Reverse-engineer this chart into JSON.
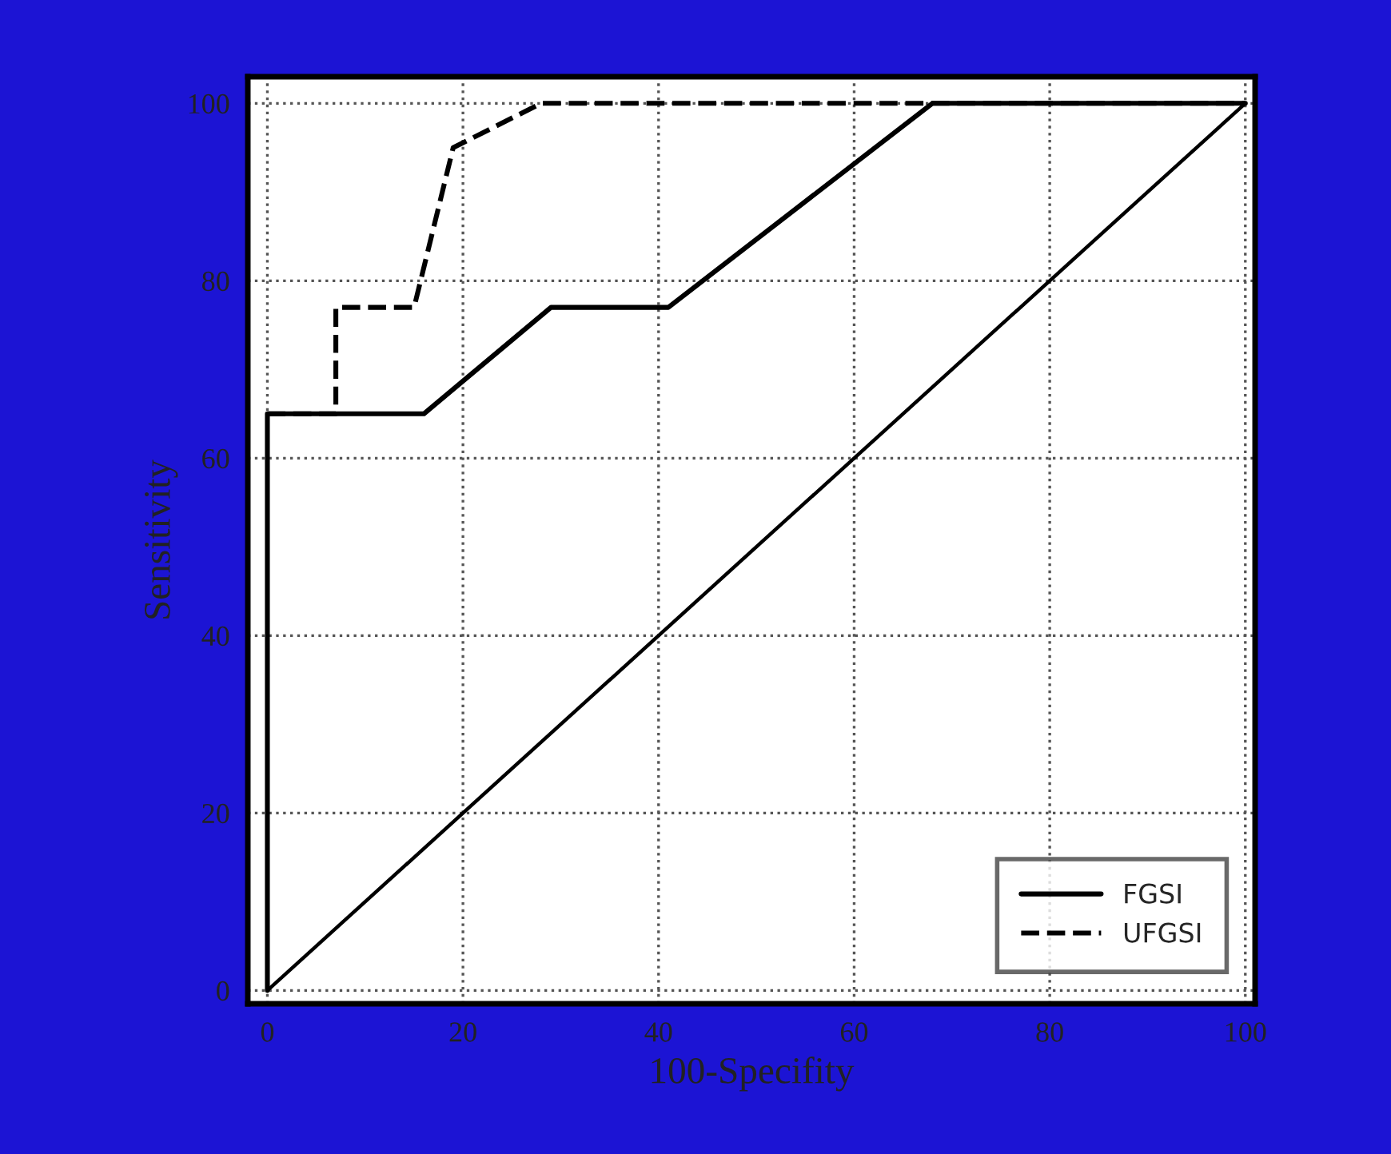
{
  "chart_data": {
    "type": "line",
    "xlabel": "100-Specifity",
    "ylabel": "Sensitivity",
    "xlim": [
      -2,
      101
    ],
    "ylim": [
      -1.5,
      103
    ],
    "xticks": [
      0,
      20,
      40,
      60,
      80,
      100
    ],
    "yticks": [
      0,
      20,
      40,
      60,
      80,
      100
    ],
    "grid": true,
    "legend": "bottom right",
    "series": [
      {
        "name": "FGSI",
        "color": "#000000",
        "line_style": "solid",
        "x": [
          0,
          0,
          16,
          29,
          41,
          68,
          100
        ],
        "values": [
          0,
          65,
          65,
          77,
          77,
          100,
          100
        ]
      },
      {
        "name": "UFGSI",
        "color": "#000000",
        "line_style": "dashed",
        "x": [
          0,
          7,
          7,
          15,
          19,
          28,
          100
        ],
        "values": [
          65,
          65,
          77,
          77,
          95,
          100,
          100
        ]
      },
      {
        "color": "#000000",
        "line_style": "solid",
        "x": [
          0,
          100
        ],
        "values": [
          0,
          100
        ]
      }
    ]
  }
}
